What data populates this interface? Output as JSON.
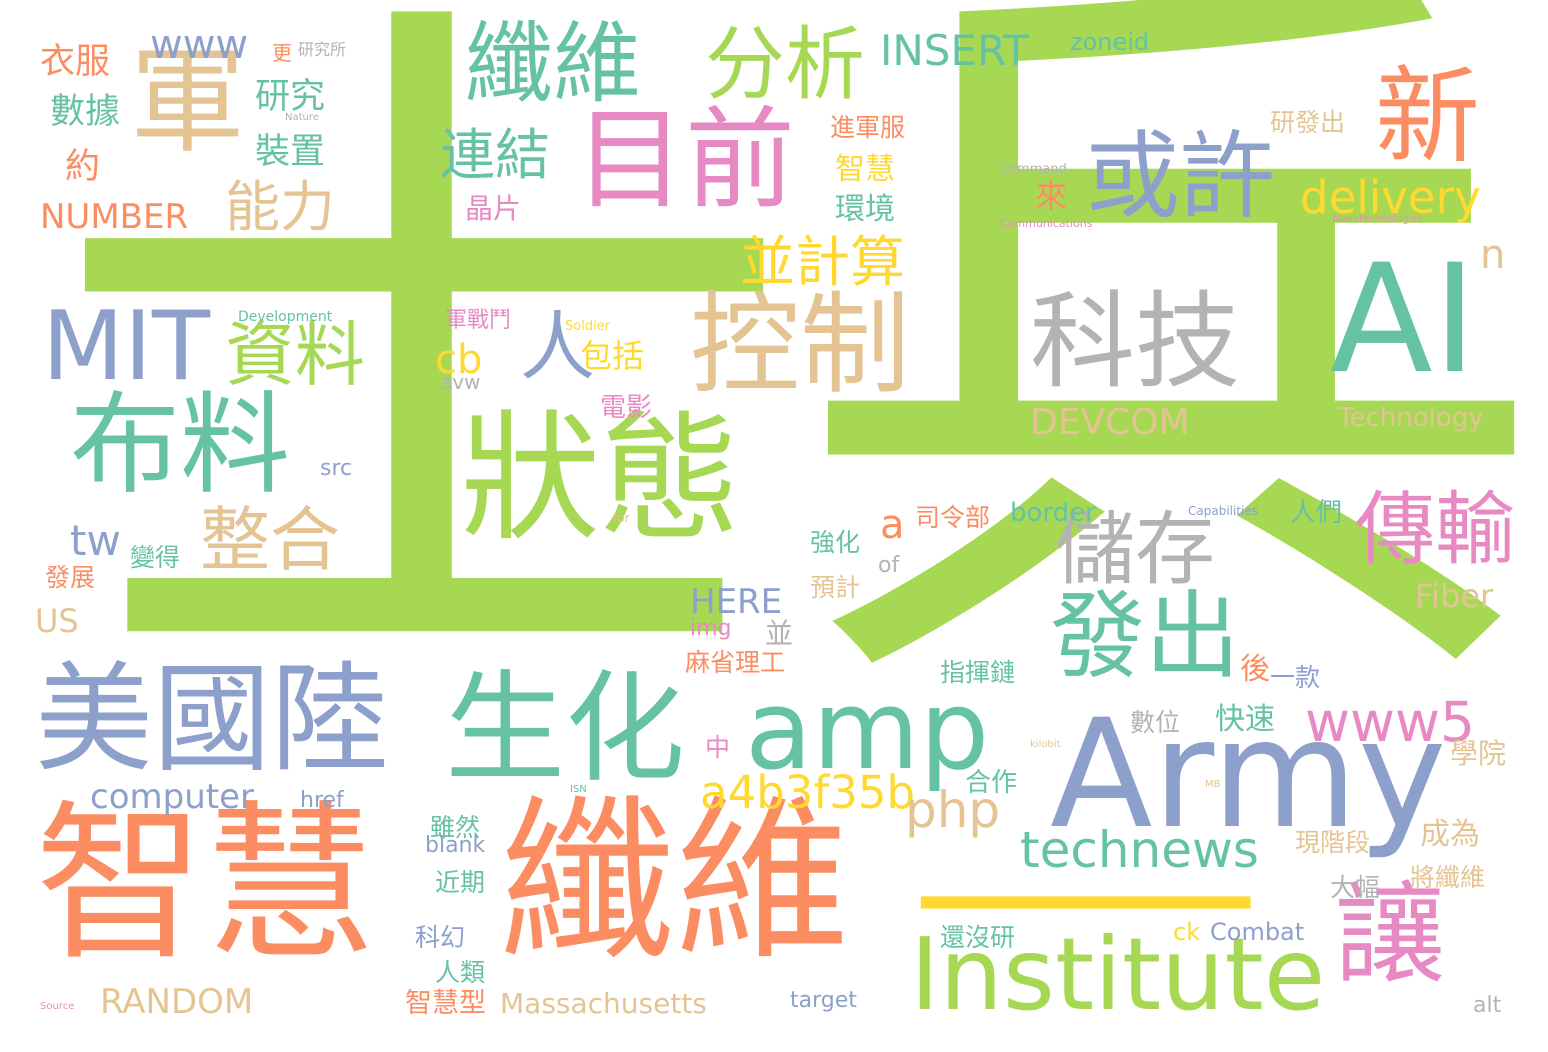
{
  "palette": {
    "green": "#a6d854",
    "orange": "#fc8d62",
    "teal": "#66c2a5",
    "blue": "#8da0cb",
    "pink": "#e78ac3",
    "tan": "#e5c494",
    "yellow": "#ffd92f",
    "gray": "#b3b3b3"
  },
  "words": {
    "shi": "士",
    "bing": "兵",
    "yi": "一",
    "zhihui": "智慧",
    "xianwei": "纖維",
    "zhuangtai": "狀態",
    "army": "Army",
    "institute": "Institute",
    "ai": "AI",
    "meiguolu": "美國陸",
    "shenghua": "生化",
    "amp": "amp",
    "mumian": "目前",
    "kongzhi": "控制",
    "buliao": "布料",
    "jun": "軍",
    "xianwei_top": "纖維",
    "fenxi": "分析",
    "xin": "新",
    "huoxu": "或許",
    "keji": "科技",
    "chuchu": "儲存",
    "fachu": "發出",
    "chuanshu": "傳輸",
    "rang": "讓",
    "mit": "MIT",
    "ren": "人",
    "ziliao": "資料",
    "zhenghe": "整合",
    "bingjisuan": "並計算",
    "lianjie": "連結",
    "nengli": "能力",
    "www5": "www5",
    "a4b3f35b": "a4b3f35b",
    "technews": "technews",
    "php": "php",
    "delivery": "delivery",
    "insert": "INSERT",
    "www": "www",
    "computer": "computer",
    "number": "NUMBER",
    "random": "RANDOM",
    "massachusetts": "Massachusetts",
    "devcom": "DEVCOM",
    "technology": "Technology",
    "fiber": "Fiber",
    "here": "HERE",
    "zoneid": "zoneid",
    "tw": "tw",
    "cb": "cb",
    "a": "a",
    "n": "n",
    "us": "US",
    "combat": "Combat",
    "yifu": "衣服",
    "shuju": "數據",
    "yanjiu": "研究",
    "zhuangzhi": "裝置",
    "yue": "約",
    "baokuo": "包括",
    "dianying": "電影",
    "lai": "來",
    "jingpian": "晶片",
    "zhihui_s": "智慧",
    "huanjing": "環境",
    "jinjunfu": "進軍服",
    "yanfachu": "研發出",
    "kuaisu": "快速",
    "hou": "後",
    "yikuan": "一款",
    "shuwei": "數位",
    "zhihuilian": "指揮鏈",
    "hezuo": "合作",
    "xueyuan": "學院",
    "chengwei": "成為",
    "xianjieduan": "現階段",
    "dafu": "大幅",
    "jiangxianwei": "將纖維",
    "haimeiyan": "還沒研",
    "renlei": "人類",
    "kehuan": "科幻",
    "jinqi": "近期",
    "suiran": "雖然",
    "zhihuixing": "智慧型",
    "mashenglgong": "麻省理工",
    "zhong": "中",
    "qianghua": "強化",
    "yuji": "預計",
    "silingbu": "司令部",
    "renmen": "人們",
    "biande": "變得",
    "fazhan": "發展",
    "junzhandou": "軍戰鬥",
    "bing_small": "並",
    "geng": "更",
    "yanjiusuo": "研究所",
    "border": "border",
    "src": "src",
    "href": "href",
    "blank": "blank",
    "target": "target",
    "img": "img",
    "of": "of",
    "alt": "alt",
    "avw": "avw",
    "ck": "ck",
    "development": "Development",
    "soldier": "Soldier",
    "command": "Command",
    "communications": "Communications",
    "capabilities": "Capabilities",
    "nanotech": "Nanotechnologies",
    "nature": "Nature",
    "for": "for",
    "source": "Source",
    "isn": "ISN",
    "kilobit": "kilobit",
    "mb": "MB"
  }
}
